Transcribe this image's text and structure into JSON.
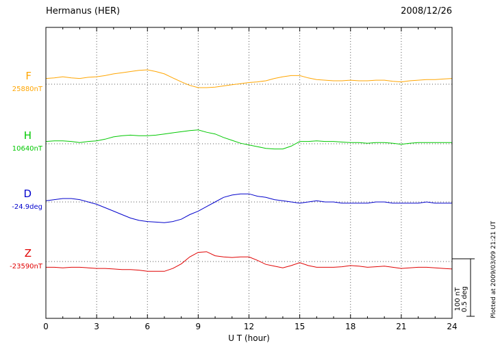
{
  "header": {
    "station": "Hermanus (HER)",
    "date": "2008/12/26"
  },
  "axis": {
    "xlabel": "U T (hour)",
    "xmin": 0,
    "xmax": 24,
    "tick_step": 3,
    "ticks": [
      0,
      3,
      6,
      9,
      12,
      15,
      18,
      21,
      24
    ]
  },
  "scalebar": {
    "line1": "100 nT",
    "line2": "0.5 deg"
  },
  "footer": {
    "plotted_at": "Plotted at 2009/03/09 21:21 UT"
  },
  "chart_data": {
    "type": "line",
    "title": "Hermanus (HER) magnetogram 2008/12/26",
    "xlabel": "U T (hour)",
    "x_unit": "hour",
    "x_start": 0,
    "x_step": 0.5,
    "xlim": [
      0,
      24
    ],
    "grid": "dotted vertical every 3 h, dotted horizontal baseline per component",
    "scale": {
      "nT_per_division": 100,
      "deg_per_division": 0.5
    },
    "series": [
      {
        "name": "F",
        "baseline_label": "25880nT",
        "baseline_value": 25880,
        "unit": "nT",
        "color": "#FFA500",
        "offsets": [
          10,
          11,
          13,
          11,
          10,
          12,
          13,
          15,
          18,
          20,
          22,
          24,
          25,
          22,
          18,
          11,
          4,
          -2,
          -6,
          -6,
          -5,
          -3,
          -1,
          1,
          3,
          4,
          6,
          10,
          13,
          15,
          15,
          11,
          8,
          7,
          6,
          6,
          7,
          6,
          6,
          7,
          7,
          5,
          4,
          6,
          7,
          8,
          8,
          9,
          10
        ]
      },
      {
        "name": "H",
        "baseline_label": "10640nT",
        "baseline_value": 10640,
        "unit": "nT",
        "color": "#00C800",
        "offsets": [
          4,
          5,
          5,
          4,
          2,
          4,
          5,
          8,
          12,
          14,
          15,
          14,
          14,
          15,
          17,
          19,
          21,
          23,
          24,
          20,
          17,
          11,
          6,
          1,
          -2,
          -5,
          -8,
          -9,
          -9,
          -4,
          4,
          4,
          5,
          4,
          4,
          3,
          2,
          2,
          1,
          2,
          2,
          1,
          -1,
          1,
          2,
          2,
          2,
          2,
          2
        ]
      },
      {
        "name": "D",
        "baseline_label": "-24.9deg",
        "baseline_value": -24.9,
        "unit": "deg",
        "color": "#0000CC",
        "offsets": [
          0.01,
          0.02,
          0.03,
          0.03,
          0.02,
          0.0,
          -0.02,
          -0.05,
          -0.08,
          -0.11,
          -0.14,
          -0.16,
          -0.17,
          -0.175,
          -0.18,
          -0.17,
          -0.15,
          -0.11,
          -0.08,
          -0.04,
          0.0,
          0.04,
          0.06,
          0.07,
          0.07,
          0.05,
          0.04,
          0.02,
          0.01,
          0.0,
          -0.01,
          0.0,
          0.01,
          0.0,
          0.0,
          -0.01,
          -0.01,
          -0.01,
          -0.01,
          0.0,
          0.0,
          -0.01,
          -0.01,
          -0.01,
          -0.01,
          0.0,
          -0.01,
          -0.01,
          -0.01
        ]
      },
      {
        "name": "Z",
        "baseline_label": "-23590nT",
        "baseline_value": -23590,
        "unit": "nT",
        "color": "#E00000",
        "offsets": [
          -10,
          -10,
          -11,
          -10,
          -10,
          -11,
          -12,
          -12,
          -13,
          -14,
          -14,
          -15,
          -17,
          -17,
          -17,
          -12,
          -4,
          8,
          16,
          17,
          10,
          8,
          7,
          8,
          8,
          2,
          -5,
          -8,
          -11,
          -7,
          -2,
          -7,
          -10,
          -10,
          -10,
          -9,
          -7,
          -8,
          -10,
          -9,
          -8,
          -10,
          -12,
          -11,
          -10,
          -10,
          -11,
          -12,
          -13
        ]
      }
    ]
  }
}
